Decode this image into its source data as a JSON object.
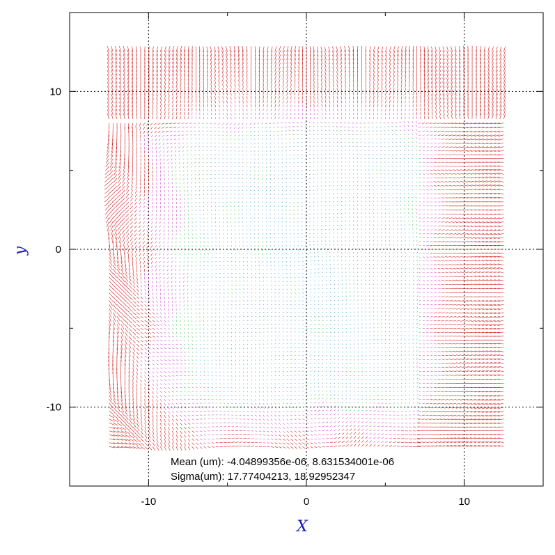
{
  "chart_data": {
    "type": "quiver",
    "xlabel": "X",
    "ylabel": "y",
    "xlim": [
      -15,
      15
    ],
    "ylim": [
      -15,
      15
    ],
    "xticks": [
      -10,
      0,
      10
    ],
    "yticks": [
      -10,
      0,
      10
    ],
    "grid": true,
    "field_extent": {
      "x": [
        -12.5,
        12.5
      ],
      "y": [
        -12.5,
        12.5
      ]
    },
    "vector_colors": {
      "large": "#cc0000",
      "medium": "#cc33cc",
      "small": "#22bb44",
      "tiny": "#3399cc"
    },
    "annotations": [
      "Mean (um): -4.04899356e-06, 8.631534001e-06",
      "Sigma(um): 17.77404213, 18.92952347"
    ]
  }
}
